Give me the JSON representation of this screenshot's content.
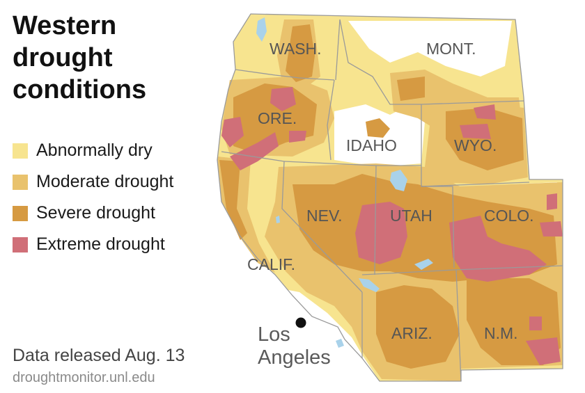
{
  "title": "Western drought conditions",
  "legend": [
    {
      "label": "Abnormally dry",
      "color": "#f7e48f"
    },
    {
      "label": "Moderate drought",
      "color": "#e9c26d"
    },
    {
      "label": "Severe drought",
      "color": "#d69a42"
    },
    {
      "label": "Extreme drought",
      "color": "#d06f78"
    }
  ],
  "source": {
    "date": "Data released Aug. 13",
    "url": "droughtmonitor.unl.edu"
  },
  "states": {
    "wash": "WASH.",
    "ore": "ORE.",
    "calif": "CALIF.",
    "idaho": "IDAHO",
    "nev": "NEV.",
    "utah": "UTAH",
    "ariz": "ARIZ.",
    "mont": "MONT.",
    "wyo": "WYO.",
    "colo": "COLO.",
    "nm": "N.M."
  },
  "city": {
    "line1": "Los",
    "line2": "Angeles"
  },
  "colors": {
    "water": "#a9d2ea",
    "border": "#9a9a9a",
    "background": "#ffffff"
  }
}
